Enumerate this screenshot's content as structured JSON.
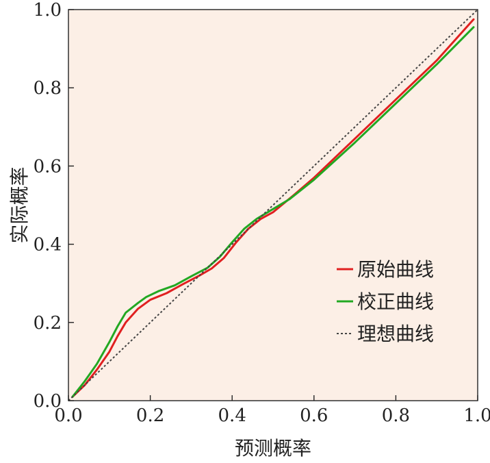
{
  "chart_data": {
    "type": "line",
    "xlabel": "预测概率",
    "ylabel": "实际概率",
    "xlim": [
      0.0,
      1.0
    ],
    "ylim": [
      0.0,
      1.0
    ],
    "x_ticks": [
      "0.0",
      "0.2",
      "0.4",
      "0.6",
      "0.8",
      "1.0"
    ],
    "y_ticks": [
      "0.0",
      "0.2",
      "0.4",
      "0.6",
      "0.8",
      "1.0"
    ],
    "grid": false,
    "legend_position": "right-center",
    "plot_background": "#fcefe6",
    "series": [
      {
        "name": "原始曲线",
        "color": "#e02020",
        "style": "solid",
        "x": [
          0.01,
          0.04,
          0.07,
          0.1,
          0.12,
          0.14,
          0.17,
          0.2,
          0.24,
          0.28,
          0.32,
          0.35,
          0.38,
          0.41,
          0.44,
          0.47,
          0.5,
          0.55,
          0.6,
          0.7,
          0.8,
          0.9,
          0.99
        ],
        "values": [
          0.01,
          0.04,
          0.08,
          0.125,
          0.165,
          0.2,
          0.235,
          0.258,
          0.275,
          0.298,
          0.32,
          0.338,
          0.365,
          0.405,
          0.44,
          0.465,
          0.482,
          0.525,
          0.57,
          0.67,
          0.77,
          0.87,
          0.975
        ]
      },
      {
        "name": "校正曲线",
        "color": "#22a822",
        "style": "solid",
        "x": [
          0.01,
          0.04,
          0.07,
          0.1,
          0.12,
          0.14,
          0.17,
          0.19,
          0.22,
          0.26,
          0.3,
          0.34,
          0.37,
          0.4,
          0.43,
          0.46,
          0.5,
          0.54,
          0.6,
          0.7,
          0.8,
          0.9,
          0.99
        ],
        "values": [
          0.01,
          0.05,
          0.095,
          0.15,
          0.19,
          0.225,
          0.25,
          0.265,
          0.28,
          0.295,
          0.318,
          0.34,
          0.368,
          0.405,
          0.44,
          0.465,
          0.49,
          0.515,
          0.565,
          0.66,
          0.76,
          0.86,
          0.955
        ]
      },
      {
        "name": "理想曲线",
        "color": "#444444",
        "style": "dotted",
        "x": [
          0.0,
          1.0
        ],
        "values": [
          0.0,
          1.0
        ]
      }
    ]
  }
}
